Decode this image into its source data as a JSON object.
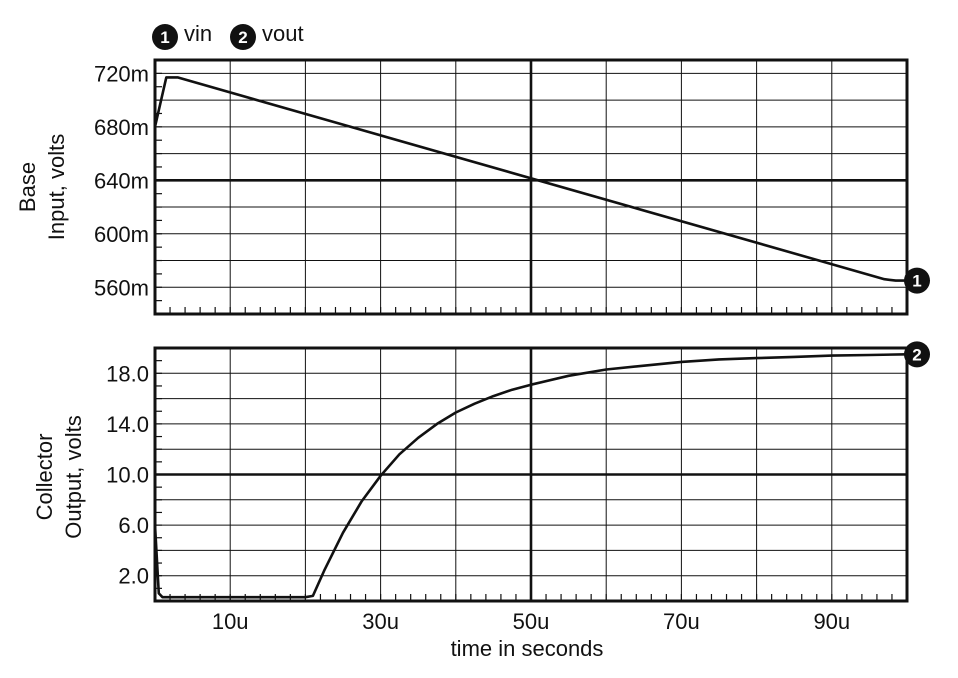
{
  "chart_data": [
    {
      "type": "line",
      "panel": "top",
      "ylabel": [
        "Base",
        "Input, volts"
      ],
      "ylim": [
        0.54,
        0.73
      ],
      "yticks": [
        0.56,
        0.6,
        0.64,
        0.68,
        0.72
      ],
      "ytick_labels": [
        "560m",
        "600m",
        "640m",
        "680m",
        "720m"
      ],
      "xlim": [
        0,
        100
      ],
      "grid": true,
      "series": [
        {
          "name": "vin",
          "marker": "1",
          "x": [
            0,
            1.5,
            3,
            97,
            98.5,
            100
          ],
          "y": [
            0.68,
            0.717,
            0.717,
            0.566,
            0.565,
            0.565
          ]
        }
      ]
    },
    {
      "type": "line",
      "panel": "bottom",
      "ylabel": [
        "Collector",
        "Output, volts"
      ],
      "ylim": [
        0,
        20
      ],
      "yticks": [
        2.0,
        6.0,
        10.0,
        14.0,
        18.0
      ],
      "ytick_labels": [
        "2.0",
        "6.0",
        "10.0",
        "14.0",
        "18.0"
      ],
      "xlim": [
        0,
        100
      ],
      "xticks": [
        10,
        30,
        50,
        70,
        90
      ],
      "xtick_labels": [
        "10u",
        "30u",
        "50u",
        "70u",
        "90u"
      ],
      "xlabel": "time in seconds",
      "grid": true,
      "series": [
        {
          "name": "vout",
          "marker": "2",
          "x": [
            0,
            0.5,
            1,
            20,
            21,
            22.5,
            25,
            27.5,
            30,
            32.5,
            35,
            37.5,
            40,
            42.5,
            45,
            47.5,
            50,
            55,
            60,
            65,
            70,
            75,
            80,
            85,
            90,
            95,
            100
          ],
          "y": [
            6.0,
            0.6,
            0.3,
            0.3,
            0.4,
            2.4,
            5.4,
            7.9,
            9.9,
            11.6,
            12.9,
            14.0,
            14.9,
            15.6,
            16.2,
            16.7,
            17.1,
            17.8,
            18.3,
            18.6,
            18.9,
            19.1,
            19.2,
            19.3,
            19.4,
            19.45,
            19.5
          ]
        }
      ]
    }
  ],
  "legend": [
    {
      "marker": "1",
      "label": "vin"
    },
    {
      "marker": "2",
      "label": "vout"
    }
  ]
}
